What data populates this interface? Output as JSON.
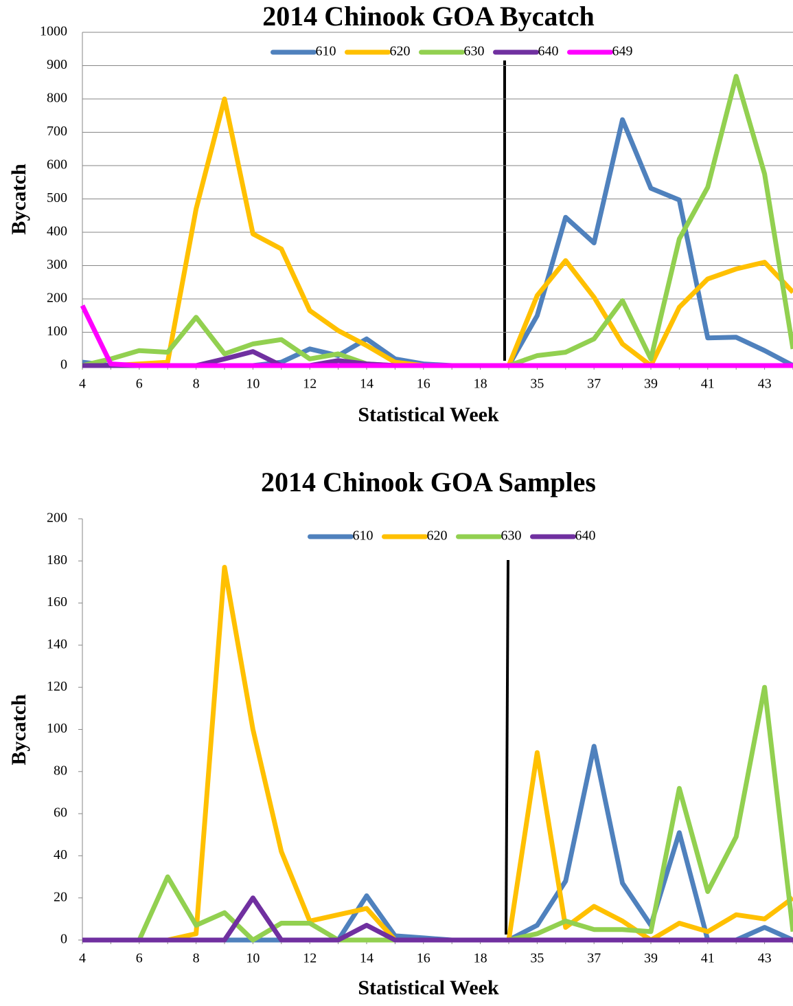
{
  "chart_data": [
    {
      "type": "line",
      "title": "2014 Chinook GOA Bycatch",
      "x_label": "Statistical Week",
      "y_label": "Bycatch",
      "categories": [
        4,
        null,
        6,
        null,
        8,
        null,
        10,
        null,
        12,
        null,
        14,
        null,
        16,
        null,
        18,
        null,
        35,
        null,
        37,
        null,
        39,
        null,
        41,
        null,
        43,
        null
      ],
      "ylim": [
        0,
        1000
      ],
      "yticks": [
        0,
        100,
        200,
        300,
        400,
        500,
        600,
        700,
        800,
        900,
        1000
      ],
      "grid": true,
      "legend": "top",
      "series": [
        {
          "name": "610",
          "color": "#4f81bd",
          "values": [
            10,
            0,
            0,
            0,
            0,
            0,
            0,
            10,
            50,
            30,
            80,
            20,
            5,
            0,
            0,
            0,
            150,
            445,
            368,
            738,
            532,
            497,
            83,
            85,
            45,
            0
          ]
        },
        {
          "name": "620",
          "color": "#ffc000",
          "values": [
            0,
            0,
            5,
            10,
            470,
            800,
            395,
            350,
            165,
            105,
            60,
            10,
            0,
            0,
            0,
            0,
            210,
            315,
            205,
            65,
            0,
            175,
            260,
            290,
            310,
            220
          ]
        },
        {
          "name": "630",
          "color": "#92d050",
          "values": [
            0,
            20,
            45,
            40,
            145,
            35,
            65,
            78,
            20,
            35,
            5,
            0,
            0,
            0,
            0,
            0,
            30,
            40,
            80,
            195,
            20,
            380,
            535,
            868,
            575,
            50
          ]
        },
        {
          "name": "640",
          "color": "#7030a0",
          "values": [
            0,
            0,
            0,
            0,
            0,
            20,
            42,
            0,
            0,
            15,
            5,
            0,
            0,
            0,
            0,
            0,
            0,
            0,
            0,
            0,
            0,
            0,
            0,
            0,
            0,
            0
          ]
        },
        {
          "name": "649",
          "color": "#ff00ff",
          "values": [
            180,
            5,
            0,
            0,
            0,
            0,
            0,
            0,
            0,
            0,
            0,
            0,
            0,
            0,
            0,
            0,
            0,
            0,
            0,
            0,
            0,
            0,
            0,
            0,
            0,
            0
          ]
        }
      ]
    },
    {
      "type": "line",
      "title": "2014 Chinook GOA Samples",
      "x_label": "Statistical Week",
      "y_label": "Bycatch",
      "categories": [
        4,
        null,
        6,
        null,
        8,
        null,
        10,
        null,
        12,
        null,
        14,
        null,
        16,
        null,
        18,
        null,
        35,
        null,
        37,
        null,
        39,
        null,
        41,
        null,
        43,
        null
      ],
      "ylim": [
        0,
        200
      ],
      "yticks": [
        0,
        20,
        40,
        60,
        80,
        100,
        120,
        140,
        160,
        180,
        200
      ],
      "grid": false,
      "legend": "top",
      "series": [
        {
          "name": "610",
          "color": "#4f81bd",
          "values": [
            0,
            0,
            0,
            0,
            0,
            0,
            0,
            0,
            0,
            0,
            21,
            2,
            1,
            0,
            0,
            0,
            7,
            28,
            92,
            27,
            7,
            51,
            0,
            0,
            6,
            0
          ]
        },
        {
          "name": "620",
          "color": "#ffc000",
          "values": [
            0,
            0,
            0,
            0,
            3,
            177,
            100,
            42,
            9,
            12,
            15,
            0,
            0,
            0,
            0,
            0,
            89,
            6,
            16,
            9,
            0,
            8,
            4,
            12,
            10,
            20
          ]
        },
        {
          "name": "630",
          "color": "#92d050",
          "values": [
            0,
            0,
            0,
            30,
            7,
            13,
            0,
            8,
            8,
            0,
            0,
            0,
            0,
            0,
            0,
            0,
            3,
            9,
            5,
            5,
            4,
            72,
            23,
            49,
            120,
            4
          ]
        },
        {
          "name": "640",
          "color": "#7030a0",
          "values": [
            0,
            0,
            0,
            0,
            0,
            0,
            20,
            0,
            0,
            0,
            7,
            0,
            0,
            0,
            0,
            0,
            0,
            0,
            0,
            0,
            0,
            0,
            0,
            0,
            0,
            0
          ]
        }
      ]
    }
  ]
}
